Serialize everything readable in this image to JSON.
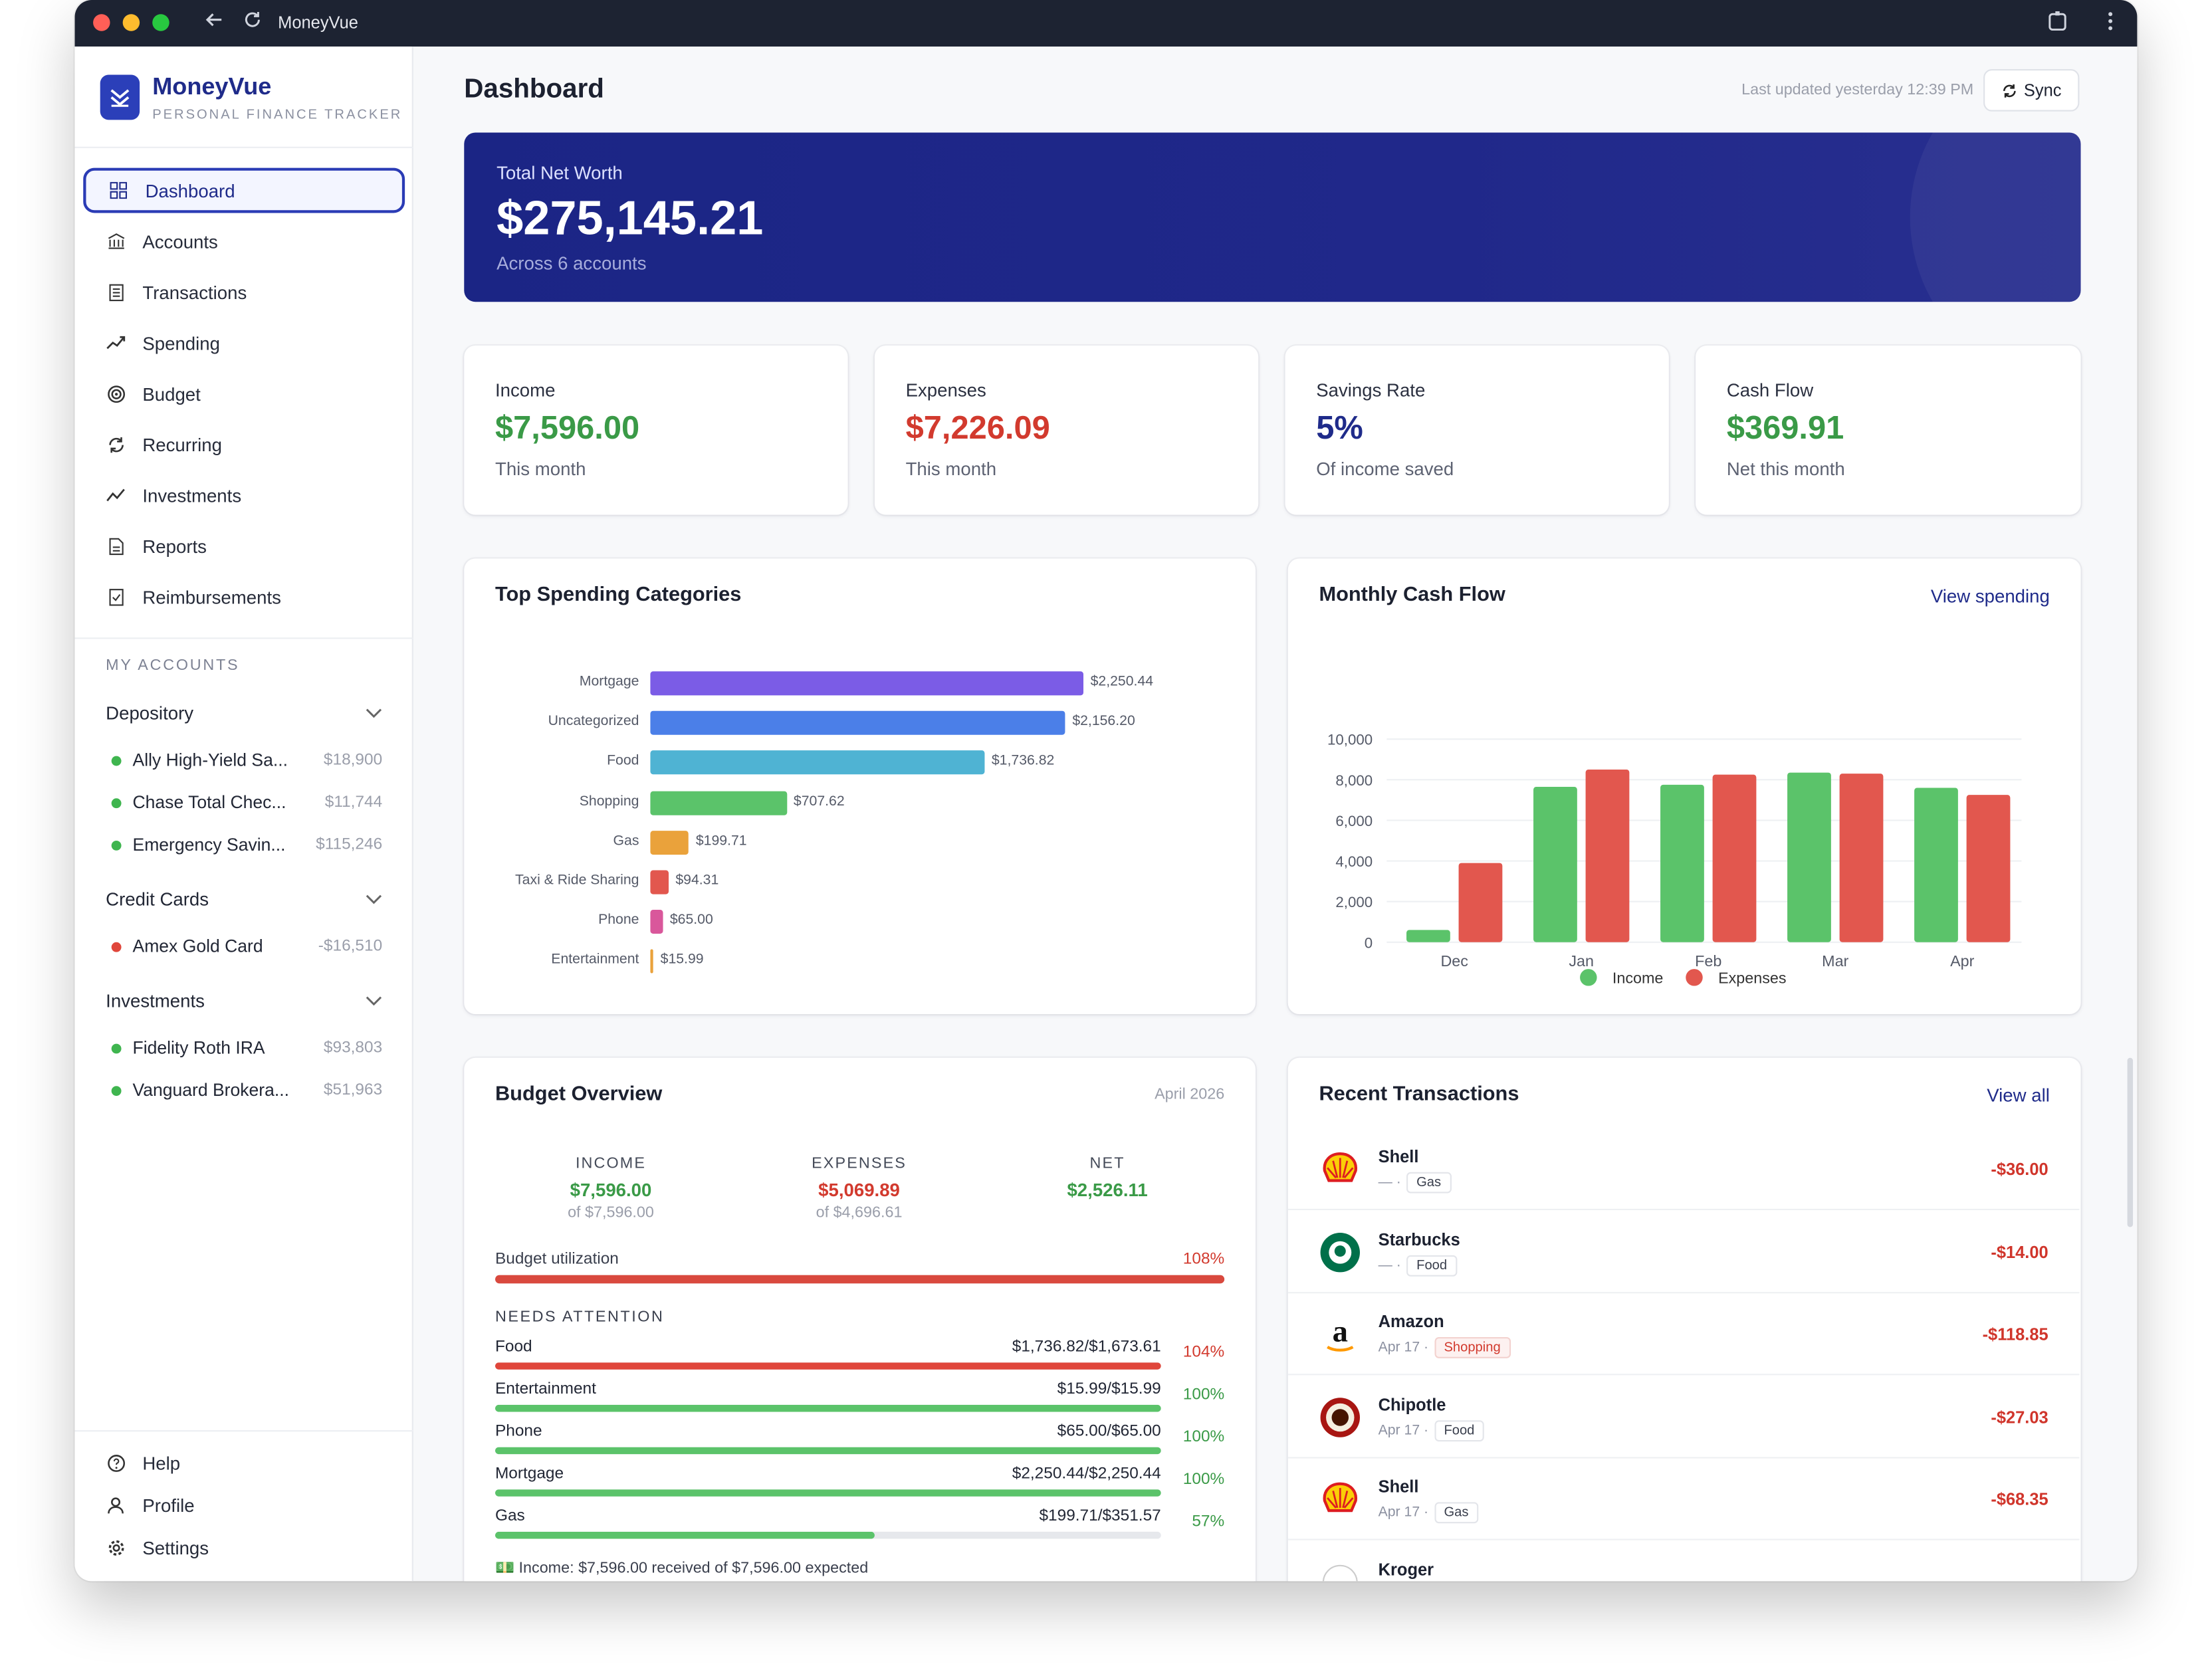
{
  "window": {
    "title": "MoneyVue"
  },
  "brand": {
    "name": "MoneyVue",
    "tagline": "PERSONAL FINANCE TRACKER"
  },
  "nav": {
    "items": [
      {
        "label": "Dashboard",
        "icon": "grid-icon",
        "active": true
      },
      {
        "label": "Accounts",
        "icon": "bank-icon"
      },
      {
        "label": "Transactions",
        "icon": "receipt-icon"
      },
      {
        "label": "Spending",
        "icon": "trend-icon"
      },
      {
        "label": "Budget",
        "icon": "target-icon"
      },
      {
        "label": "Recurring",
        "icon": "refresh-icon"
      },
      {
        "label": "Investments",
        "icon": "chart-line-icon"
      },
      {
        "label": "Reports",
        "icon": "document-icon"
      },
      {
        "label": "Reimbursements",
        "icon": "receipt-check-icon"
      }
    ],
    "bottom": [
      {
        "label": "Help",
        "icon": "help-icon"
      },
      {
        "label": "Profile",
        "icon": "user-icon"
      },
      {
        "label": "Settings",
        "icon": "gear-icon"
      }
    ]
  },
  "accounts": {
    "section_label": "MY ACCOUNTS",
    "groups": [
      {
        "name": "Depository",
        "items": [
          {
            "name": "Ally High-Yield Sa...",
            "value": "$18,900",
            "color": "#3fb54f"
          },
          {
            "name": "Chase Total Chec...",
            "value": "$11,744",
            "color": "#3fb54f"
          },
          {
            "name": "Emergency Savin...",
            "value": "$115,246",
            "color": "#3fb54f"
          }
        ]
      },
      {
        "name": "Credit Cards",
        "items": [
          {
            "name": "Amex Gold Card",
            "value": "-$16,510",
            "color": "#e0463b"
          }
        ]
      },
      {
        "name": "Investments",
        "items": [
          {
            "name": "Fidelity Roth IRA",
            "value": "$93,803",
            "color": "#3fb54f"
          },
          {
            "name": "Vanguard Brokera...",
            "value": "$51,963",
            "color": "#3fb54f"
          }
        ]
      }
    ]
  },
  "header": {
    "title": "Dashboard",
    "updated": "Last updated yesterday 12:39 PM",
    "sync_label": "Sync"
  },
  "networth": {
    "label": "Total Net Worth",
    "value": "$275,145.21",
    "sub": "Across 6 accounts"
  },
  "stats": [
    {
      "label": "Income",
      "value": "$7,596.00",
      "sub": "This month",
      "color": "#3a9a47"
    },
    {
      "label": "Expenses",
      "value": "$7,226.09",
      "sub": "This month",
      "color": "#d23a2e"
    },
    {
      "label": "Savings Rate",
      "value": "5%",
      "sub": "Of income saved",
      "color": "#1f2b8a"
    },
    {
      "label": "Cash Flow",
      "value": "$369.91",
      "sub": "Net this month",
      "color": "#3a9a47"
    }
  ],
  "top_spending": {
    "title": "Top Spending Categories"
  },
  "cashflow": {
    "title": "Monthly Cash Flow",
    "link": "View spending"
  },
  "chart_data": [
    {
      "type": "bar",
      "orientation": "horizontal",
      "categories": [
        "Mortgage",
        "Uncategorized",
        "Food",
        "Shopping",
        "Gas",
        "Taxi & Ride Sharing",
        "Phone",
        "Entertainment"
      ],
      "values": [
        2250.44,
        2156.2,
        1736.82,
        707.62,
        199.71,
        94.31,
        65.0,
        15.99
      ],
      "value_labels": [
        "$2,250.44",
        "$2,156.20",
        "$1,736.82",
        "$707.62",
        "$199.71",
        "$94.31",
        "$65.00",
        "$15.99"
      ],
      "colors": [
        "#7b5ce6",
        "#4b7fe8",
        "#4fb3d3",
        "#5bc36a",
        "#eaa23b",
        "#e2574e",
        "#d9579b",
        "#eaa23b"
      ]
    },
    {
      "type": "bar",
      "categories": [
        "Dec",
        "Jan",
        "Feb",
        "Mar",
        "Apr"
      ],
      "series": [
        {
          "name": "Income",
          "color": "#5bc36a",
          "values": [
            600,
            7650,
            7750,
            8350,
            7600
          ]
        },
        {
          "name": "Expenses",
          "color": "#e2574e",
          "values": [
            3900,
            8500,
            8250,
            8300,
            7250
          ]
        }
      ],
      "ylim": [
        0,
        10000
      ],
      "yticks": [
        "10,000",
        "8,000",
        "6,000",
        "4,000",
        "2,000",
        "0"
      ],
      "legend": "bottom"
    }
  ],
  "budget": {
    "title": "Budget Overview",
    "period": "April 2026",
    "income": {
      "label": "INCOME",
      "value": "$7,596.00",
      "of": "of $7,596.00"
    },
    "expenses": {
      "label": "EXPENSES",
      "value": "$5,069.89",
      "of": "of $4,696.61"
    },
    "net": {
      "label": "NET",
      "value": "$2,526.11"
    },
    "utilization": {
      "label": "Budget utilization",
      "percent": "108%",
      "fill": 1.0
    },
    "attention_label": "NEEDS ATTENTION",
    "items": [
      {
        "name": "Food",
        "amount": "$1,736.82/$1,673.61",
        "percent": "104%",
        "fill": 1.0,
        "color": "#e0463b",
        "pcolor": "#d23a2e"
      },
      {
        "name": "Entertainment",
        "amount": "$15.99/$15.99",
        "percent": "100%",
        "fill": 1.0,
        "color": "#5bc36a",
        "pcolor": "#3a9a47"
      },
      {
        "name": "Phone",
        "amount": "$65.00/$65.00",
        "percent": "100%",
        "fill": 1.0,
        "color": "#5bc36a",
        "pcolor": "#3a9a47"
      },
      {
        "name": "Mortgage",
        "amount": "$2,250.44/$2,250.44",
        "percent": "100%",
        "fill": 1.0,
        "color": "#5bc36a",
        "pcolor": "#3a9a47"
      },
      {
        "name": "Gas",
        "amount": "$199.71/$351.57",
        "percent": "57%",
        "fill": 0.57,
        "color": "#5bc36a",
        "pcolor": "#3a9a47"
      }
    ],
    "footer": "Income: $7,596.00 received of $7,596.00 expected"
  },
  "transactions": {
    "title": "Recent Transactions",
    "link": "View all",
    "items": [
      {
        "name": "Shell",
        "date": "— ·",
        "category": "Gas",
        "amount": "-$36.00",
        "logo": "shell-logo-icon"
      },
      {
        "name": "Starbucks",
        "date": "— ·",
        "category": "Food",
        "amount": "-$14.00",
        "logo": "starbucks-logo-icon"
      },
      {
        "name": "Amazon",
        "date": "Apr 17 ·",
        "category": "Shopping",
        "amount": "-$118.85",
        "logo": "amazon-logo-icon"
      },
      {
        "name": "Chipotle",
        "date": "Apr 17 ·",
        "category": "Food",
        "amount": "-$27.03",
        "logo": "chipotle-logo-icon"
      },
      {
        "name": "Shell",
        "date": "Apr 17 ·",
        "category": "Gas",
        "amount": "-$68.35",
        "logo": "shell-logo-icon"
      },
      {
        "name": "Kroger",
        "date": "",
        "category": "",
        "amount": "",
        "logo": "kroger-logo-icon"
      }
    ]
  }
}
